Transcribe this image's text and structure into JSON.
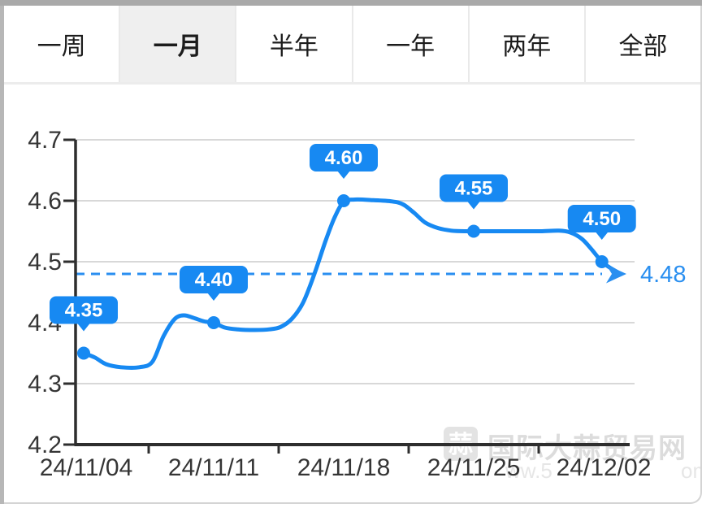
{
  "tabs": {
    "active_index": 1,
    "items": [
      {
        "id": "week",
        "label": "一周"
      },
      {
        "id": "month",
        "label": "一月"
      },
      {
        "id": "half-year",
        "label": "半年"
      },
      {
        "id": "year",
        "label": "一年"
      },
      {
        "id": "two-years",
        "label": "两年"
      },
      {
        "id": "all",
        "label": "全部"
      }
    ]
  },
  "chart_data": {
    "type": "line",
    "title": "",
    "xlabel": "",
    "ylabel": "",
    "ylim": [
      4.2,
      4.7
    ],
    "y_ticks": [
      4.7,
      4.6,
      4.5,
      4.4,
      4.3,
      4.2
    ],
    "x_tick_labels": [
      "24/11/04",
      "24/11/11",
      "24/11/18",
      "24/11/25",
      "24/12/02"
    ],
    "x_domain_days": [
      0,
      28
    ],
    "grid": "horizontal",
    "legend": "none",
    "labeled_points": [
      {
        "x_label": "24/11/04",
        "day": 0,
        "value": 4.35,
        "label": "4.35"
      },
      {
        "x_label": "24/11/11",
        "day": 7,
        "value": 4.4,
        "label": "4.40"
      },
      {
        "x_label": "24/11/18",
        "day": 14,
        "value": 4.6,
        "label": "4.60"
      },
      {
        "x_label": "24/11/25",
        "day": 21,
        "value": 4.55,
        "label": "4.55"
      },
      {
        "x_label": "24/12/02",
        "day": 27.9,
        "value": 4.5,
        "label": "4.50"
      }
    ],
    "latest": {
      "value": 4.48,
      "label": "4.48"
    },
    "curve": [
      [
        0,
        4.35
      ],
      [
        0.6,
        4.343
      ],
      [
        1.2,
        4.332
      ],
      [
        2,
        4.327
      ],
      [
        3,
        4.327
      ],
      [
        3.7,
        4.336
      ],
      [
        4.3,
        4.378
      ],
      [
        4.9,
        4.406
      ],
      [
        5.4,
        4.412
      ],
      [
        5.9,
        4.408
      ],
      [
        6.5,
        4.402
      ],
      [
        7,
        4.4
      ],
      [
        7.6,
        4.392
      ],
      [
        8.3,
        4.389
      ],
      [
        9.2,
        4.388
      ],
      [
        10,
        4.389
      ],
      [
        10.6,
        4.393
      ],
      [
        11.2,
        4.406
      ],
      [
        11.8,
        4.432
      ],
      [
        12.4,
        4.478
      ],
      [
        13,
        4.532
      ],
      [
        13.5,
        4.572
      ],
      [
        14,
        4.598
      ],
      [
        14.6,
        4.602
      ],
      [
        15.6,
        4.601
      ],
      [
        16.6,
        4.599
      ],
      [
        17.2,
        4.594
      ],
      [
        17.8,
        4.58
      ],
      [
        18.4,
        4.564
      ],
      [
        19.1,
        4.555
      ],
      [
        19.8,
        4.551
      ],
      [
        20.6,
        4.55
      ],
      [
        21.6,
        4.55
      ],
      [
        22.6,
        4.55
      ],
      [
        23.6,
        4.55
      ],
      [
        24.6,
        4.55
      ],
      [
        25.6,
        4.551
      ],
      [
        26.2,
        4.548
      ],
      [
        26.8,
        4.538
      ],
      [
        27.3,
        4.522
      ],
      [
        27.9,
        4.5
      ],
      [
        28.3,
        4.491
      ],
      [
        28.75,
        4.483
      ]
    ],
    "colors": {
      "line": "#1789f2",
      "bubble_bg": "#1789f2",
      "bubble_text": "#ffffff",
      "dashed": "#2a8ff0",
      "grid": "#d8d8d8",
      "axis": "#2e2e2e",
      "tick_text": "#353535"
    }
  },
  "watermark": {
    "logo_char": "蒜",
    "text": "国际大蒜贸易网",
    "url_fragment_left": "ww.5",
    "url_fragment_right": "om",
    "color": "#dcdcdc"
  }
}
